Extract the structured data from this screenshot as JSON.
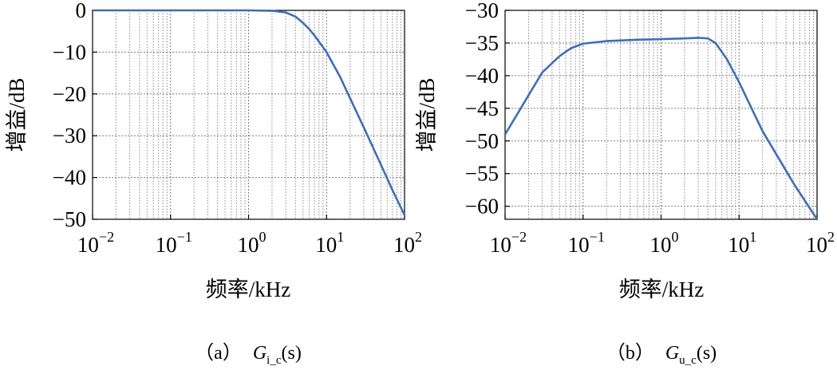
{
  "chart_data": [
    {
      "type": "line",
      "caption_label": "（a）",
      "caption_symbol": "G",
      "caption_subscript": "i_c",
      "caption_arg": "(s)",
      "xlabel": "频率/kHz",
      "ylabel": "增益/dB",
      "xscale": "log",
      "xlim": [
        0.01,
        100
      ],
      "ylim": [
        -50,
        0
      ],
      "x_ticks": [
        0.01,
        0.1,
        1,
        10,
        100
      ],
      "x_tick_labels": [
        {
          "base": "10",
          "exp": "−2"
        },
        {
          "base": "10",
          "exp": "−1"
        },
        {
          "base": "10",
          "exp": "0"
        },
        {
          "base": "10",
          "exp": "1"
        },
        {
          "base": "10",
          "exp": "2"
        }
      ],
      "y_ticks": [
        0,
        -10,
        -20,
        -30,
        -40,
        -50
      ],
      "y_tick_labels": [
        "0",
        "−10",
        "−20",
        "−30",
        "−40",
        "−50"
      ],
      "grid": true,
      "line_color": "#3f6fb5",
      "series": [
        {
          "x": [
            0.01,
            0.1,
            1,
            2,
            3,
            4,
            5,
            6,
            7,
            8,
            10,
            15,
            20,
            30,
            50,
            70,
            100
          ],
          "y": [
            0,
            0,
            0,
            -0.1,
            -0.5,
            -1.5,
            -3,
            -4.5,
            -6,
            -7.5,
            -10,
            -16,
            -21,
            -28,
            -37,
            -43,
            -49
          ]
        }
      ]
    },
    {
      "type": "line",
      "caption_label": "（b）",
      "caption_symbol": "G",
      "caption_subscript": "u_c",
      "caption_arg": "(s)",
      "xlabel": "频率/kHz",
      "ylabel": "增益/dB",
      "xscale": "log",
      "xlim": [
        0.01,
        100
      ],
      "ylim": [
        -62,
        -30
      ],
      "x_ticks": [
        0.01,
        0.1,
        1,
        10,
        100
      ],
      "x_tick_labels": [
        {
          "base": "10",
          "exp": "−2"
        },
        {
          "base": "10",
          "exp": "−1"
        },
        {
          "base": "10",
          "exp": "0"
        },
        {
          "base": "10",
          "exp": "1"
        },
        {
          "base": "10",
          "exp": "2"
        }
      ],
      "y_ticks": [
        -30,
        -35,
        -40,
        -45,
        -50,
        -55,
        -60
      ],
      "y_tick_labels": [
        "−30",
        "−35",
        "−40",
        "−45",
        "−50",
        "−55",
        "−60"
      ],
      "grid": true,
      "line_color": "#3f6fb5",
      "series": [
        {
          "x": [
            0.01,
            0.015,
            0.02,
            0.03,
            0.05,
            0.07,
            0.1,
            0.2,
            0.5,
            1,
            2,
            3,
            4,
            5,
            7,
            10,
            20,
            50,
            100
          ],
          "y": [
            -49,
            -45.5,
            -43,
            -39.5,
            -37,
            -35.8,
            -35.1,
            -34.7,
            -34.5,
            -34.4,
            -34.3,
            -34.2,
            -34.3,
            -35,
            -37.5,
            -41,
            -48.5,
            -56.5,
            -62
          ]
        }
      ]
    }
  ]
}
